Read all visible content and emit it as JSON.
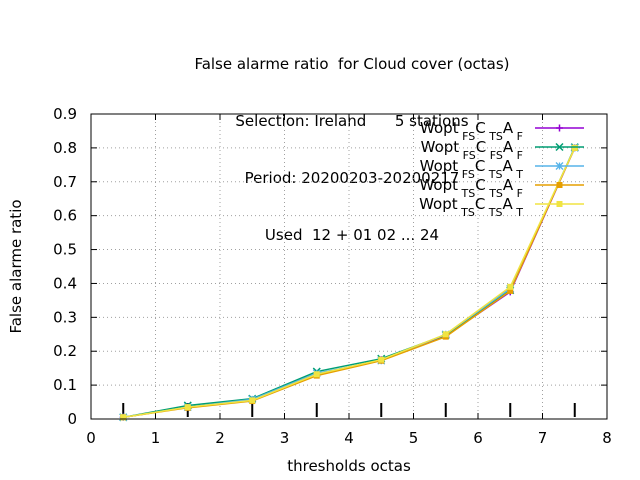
{
  "title_lines": [
    "False alarme ratio  for Cloud cover (octas)",
    "Selection: Ireland      5 stations",
    "Period: 20200203-20200217",
    "Used  12 + 01 02 ... 24"
  ],
  "chart_data": {
    "type": "line",
    "title": "False alarme ratio  for Cloud cover (octas)",
    "xlabel": "thresholds octas",
    "ylabel": "False alarme ratio",
    "xlim": [
      0,
      8
    ],
    "ylim": [
      0,
      0.9
    ],
    "xticks": [
      0,
      1,
      2,
      3,
      4,
      5,
      6,
      7,
      8
    ],
    "yticks": [
      0,
      0.1,
      0.2,
      0.3,
      0.4,
      0.5,
      0.6,
      0.7,
      0.8,
      0.9
    ],
    "xtick_labels": [
      "0",
      "1",
      "2",
      "3",
      "4",
      "5",
      "6",
      "7",
      "8"
    ],
    "ytick_labels": [
      "0",
      "0.1",
      "0.2",
      "0.3",
      "0.4",
      "0.5",
      "0.6",
      "0.7",
      "0.8",
      "0.9"
    ],
    "grid": true,
    "legend_position": "top-right",
    "x": [
      0.5,
      1.5,
      2.5,
      3.5,
      4.5,
      5.5,
      6.5,
      7.5
    ],
    "series": [
      {
        "legend": {
          "base": "Wopt",
          "s1": "FS",
          "c": "C",
          "s2": "TS",
          "a": "A",
          "s3": "F"
        },
        "color": "#9400d3",
        "marker": "plus",
        "values": [
          0.005,
          0.035,
          0.055,
          0.13,
          0.175,
          0.245,
          0.375,
          0.8
        ]
      },
      {
        "legend": {
          "base": "Wopt",
          "s1": "FS",
          "c": "C",
          "s2": "FS",
          "a": "A",
          "s3": "F"
        },
        "color": "#009e73",
        "marker": "cross",
        "values": [
          0.005,
          0.04,
          0.06,
          0.14,
          0.178,
          0.248,
          0.38,
          0.802
        ]
      },
      {
        "legend": {
          "base": "Wopt",
          "s1": "FS",
          "c": "C",
          "s2": "TS",
          "a": "A",
          "s3": "T"
        },
        "color": "#56b4e9",
        "marker": "star",
        "values": [
          0.005,
          0.035,
          0.058,
          0.135,
          0.172,
          0.25,
          0.385,
          0.8
        ]
      },
      {
        "legend": {
          "base": "Wopt",
          "s1": "TS",
          "c": "C",
          "s2": "TS",
          "a": "A",
          "s3": "F"
        },
        "color": "#e69f00",
        "marker": "box",
        "values": [
          0.005,
          0.033,
          0.053,
          0.128,
          0.172,
          0.243,
          0.378,
          0.8
        ]
      },
      {
        "legend": {
          "base": "Wopt",
          "s1": "TS",
          "c": "C",
          "s2": "TS",
          "a": "A",
          "s3": "T"
        },
        "color": "#f0e442",
        "marker": "box",
        "values": [
          0.005,
          0.035,
          0.055,
          0.132,
          0.175,
          0.25,
          0.39,
          0.8
        ]
      }
    ],
    "sample_ticks_x": [
      0.5,
      1.5,
      2.5,
      3.5,
      4.5,
      5.5,
      6.5,
      7.5
    ]
  }
}
